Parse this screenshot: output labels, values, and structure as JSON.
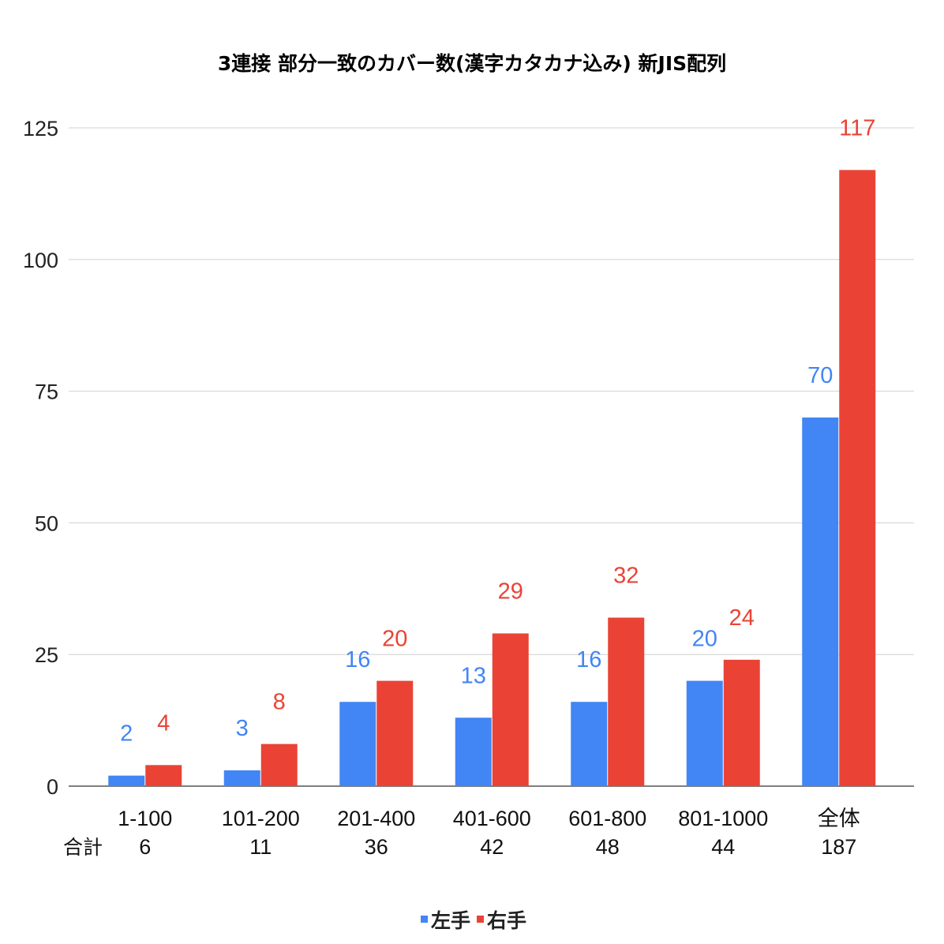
{
  "chart_data": {
    "type": "bar",
    "title": "3連接 部分一致のカバー数(漢字カタカナ込み) 新JIS配列",
    "categories": [
      "1-100",
      "101-200",
      "201-400",
      "401-600",
      "601-800",
      "801-1000",
      "全体"
    ],
    "totals_label": "合計",
    "totals": [
      6,
      11,
      36,
      42,
      48,
      44,
      187
    ],
    "series": [
      {
        "name": "左手",
        "color": "#4285f4",
        "values": [
          2,
          3,
          16,
          13,
          16,
          20,
          70
        ]
      },
      {
        "name": "右手",
        "color": "#ea4335",
        "values": [
          4,
          8,
          20,
          29,
          32,
          24,
          117
        ]
      }
    ],
    "ylim": [
      0,
      125
    ],
    "yticks": [
      0,
      25,
      50,
      75,
      100,
      125
    ],
    "grid": true,
    "legend_position": "bottom",
    "data_labels": true
  }
}
